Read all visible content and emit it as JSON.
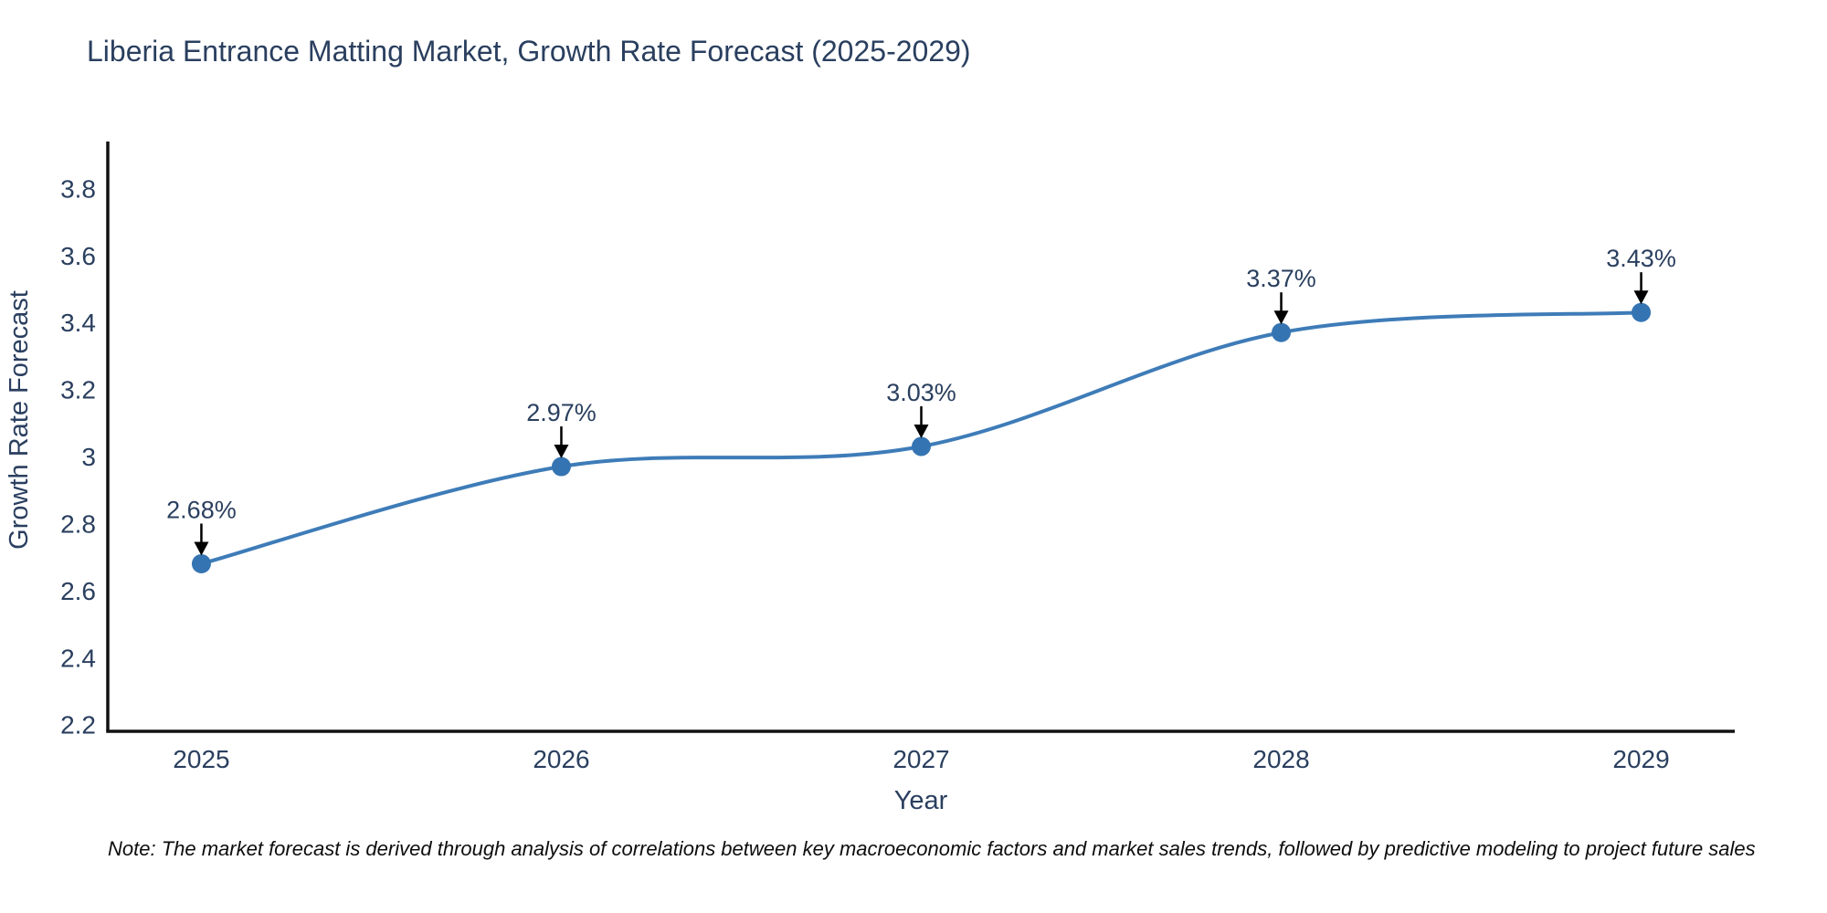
{
  "chart_data": {
    "type": "line",
    "title": "Liberia Entrance Matting Market, Growth Rate Forecast (2025-2029)",
    "xlabel": "Year",
    "ylabel": "Growth Rate Forecast",
    "x": [
      2025,
      2026,
      2027,
      2028,
      2029
    ],
    "series": [
      {
        "name": "Growth Rate Forecast",
        "values": [
          2.68,
          2.97,
          3.03,
          3.37,
          3.43
        ],
        "point_labels": [
          "2.68%",
          "2.97%",
          "3.03%",
          "3.37%",
          "3.43%"
        ]
      }
    ],
    "line_shape": "spline",
    "xlim": [
      2024.74,
      2029.26
    ],
    "ylim": [
      2.18,
      3.94
    ],
    "xticks": [
      2025,
      2026,
      2027,
      2028,
      2029
    ],
    "xtick_labels": [
      "2025",
      "2026",
      "2027",
      "2028",
      "2029"
    ],
    "yticks": [
      2.2,
      2.4,
      2.6,
      2.8,
      3,
      3.2,
      3.4,
      3.6,
      3.8
    ],
    "ytick_labels": [
      "2.2",
      "2.4",
      "2.6",
      "2.8",
      "3",
      "3.2",
      "3.4",
      "3.6",
      "3.8"
    ],
    "grid": false,
    "legend": null,
    "colors": {
      "line": "#3e7cb8",
      "marker": "#3574b2",
      "axis": "#111111",
      "text": "#2a3f5f",
      "arrow": "#000000",
      "background": "#ffffff"
    }
  },
  "footer": {
    "note": "Note: The market forecast is derived through analysis of correlations between key macroeconomic factors and market sales trends, followed by predictive modeling to project future sales"
  }
}
